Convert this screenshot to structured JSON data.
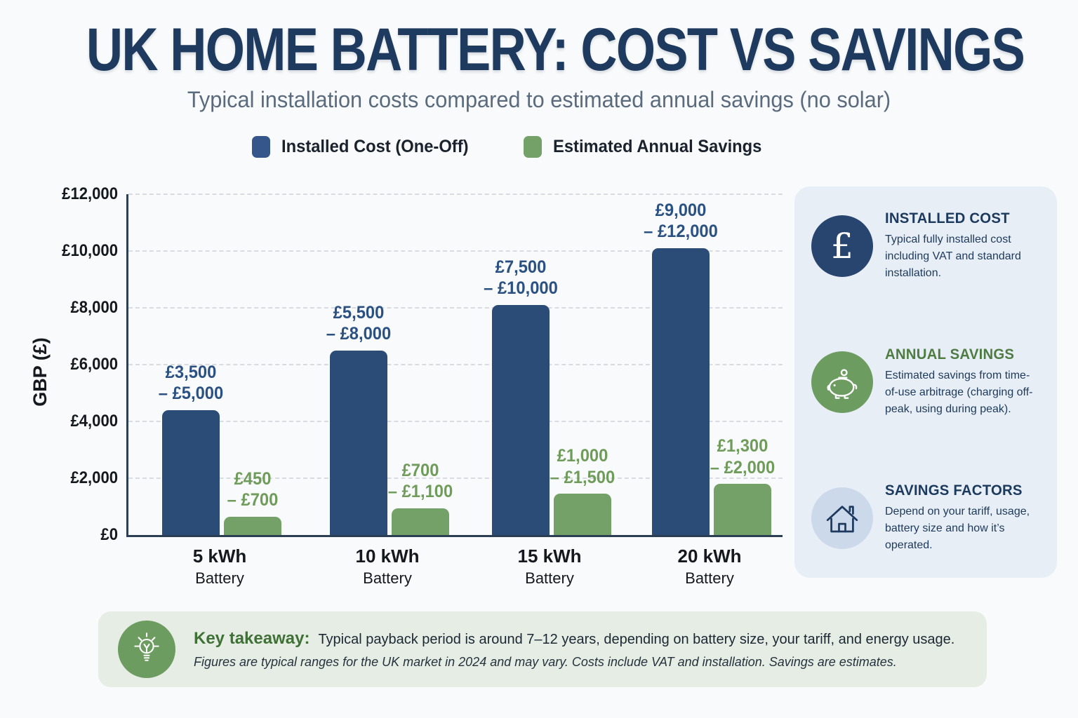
{
  "page": {
    "title": "UK HOME BATTERY: COST VS SAVINGS",
    "subtitle": "Typical installation costs compared to estimated annual savings (no solar)"
  },
  "legend": [
    {
      "label": "Installed Cost (One-Off)",
      "color": "#35568a"
    },
    {
      "label": "Estimated Annual Savings",
      "color": "#74a167"
    }
  ],
  "chart_data": {
    "type": "bar",
    "title": "UK HOME BATTERY: COST VS SAVINGS",
    "categories": [
      "5 kWh",
      "10 kWh",
      "15 kWh",
      "20 kWh"
    ],
    "category_subline": "Battery",
    "xlabel": "",
    "ylabel": "GBP (£)",
    "ylim": [
      0,
      12000
    ],
    "ytick_step": 2000,
    "yticks": [
      "£0",
      "£2,000",
      "£4,000",
      "£6,000",
      "£8,000",
      "£10,000",
      "£12,000"
    ],
    "grid": "horizontal-dashed",
    "legend_position": "top",
    "series": [
      {
        "name": "Installed Cost (One-Off)",
        "color": "#2b4c77",
        "label_color": "#2b5183",
        "values": [
          4400,
          6500,
          8100,
          10100
        ],
        "range_labels": [
          [
            "£3,500",
            "– £5,000"
          ],
          [
            "£5,500",
            "– £8,000"
          ],
          [
            "£7,500",
            "– £10,000"
          ],
          [
            "£9,000",
            "– £12,000"
          ]
        ]
      },
      {
        "name": "Estimated Annual Savings",
        "color": "#74a167",
        "label_color": "#6f9c5a",
        "values": [
          650,
          950,
          1450,
          1800
        ],
        "range_labels": [
          [
            "£450",
            "– £700"
          ],
          [
            "£700",
            "– £1,100"
          ],
          [
            "£1,000",
            "– £1,500"
          ],
          [
            "£1,300",
            "– £2,000"
          ]
        ]
      }
    ]
  },
  "sidebar": {
    "items": [
      {
        "icon": "pound-icon",
        "icon_bg": "#27456e",
        "title": "INSTALLED COST",
        "title_color": "#1c3a5e",
        "text": "Typical fully installed cost including VAT and standard installation."
      },
      {
        "icon": "piggy-bank-icon",
        "icon_bg": "#6d9c60",
        "title": "ANNUAL SAVINGS",
        "title_color": "#4e7c42",
        "text": "Estimated savings from time-of-use arbitrage (charging off-peak, using during peak)."
      },
      {
        "icon": "house-icon",
        "icon_bg": "#ccd9eb",
        "title": "SAVINGS FACTORS",
        "title_color": "#1c3a5e",
        "text": "Depend on your tariff, usage, battery size and how it’s operated."
      }
    ]
  },
  "takeaway": {
    "icon": "lightbulb-icon",
    "icon_bg": "#6d9c60",
    "heading": "Key takeaway:",
    "heading_color": "#3f7137",
    "text": "Typical payback period is around 7–12 years, depending on battery size, your tariff, and energy usage.",
    "footnote": "Figures are typical ranges for the UK market in 2024 and may vary. Costs include VAT and installation. Savings are estimates."
  }
}
